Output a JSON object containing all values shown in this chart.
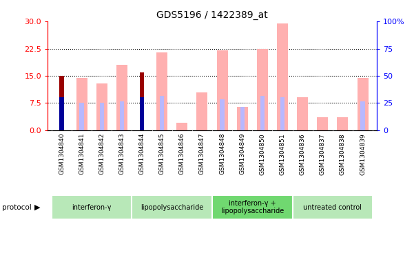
{
  "title": "GDS5196 / 1422389_at",
  "samples": [
    "GSM1304840",
    "GSM1304841",
    "GSM1304842",
    "GSM1304843",
    "GSM1304844",
    "GSM1304845",
    "GSM1304846",
    "GSM1304847",
    "GSM1304848",
    "GSM1304849",
    "GSM1304850",
    "GSM1304851",
    "GSM1304836",
    "GSM1304837",
    "GSM1304838",
    "GSM1304839"
  ],
  "count_values": [
    15.0,
    0,
    0,
    0,
    16.0,
    0,
    0,
    0,
    0,
    0,
    0,
    0,
    0,
    0,
    0,
    0
  ],
  "rank_values": [
    9.0,
    0,
    0,
    0,
    9.0,
    0,
    0,
    0,
    0,
    0,
    0,
    0,
    0,
    0,
    0,
    0
  ],
  "value_absent": [
    0,
    14.5,
    13.0,
    18.0,
    0,
    21.5,
    2.0,
    10.5,
    22.0,
    6.5,
    22.5,
    29.5,
    9.0,
    3.5,
    3.5,
    14.5
  ],
  "rank_absent": [
    0,
    7.5,
    7.5,
    8.0,
    0,
    9.5,
    0,
    0,
    8.5,
    6.5,
    9.5,
    9.0,
    0,
    0,
    0,
    8.0
  ],
  "groups": [
    {
      "label": "interferon-γ",
      "start": 0,
      "end": 4,
      "color": "#b8e8b8"
    },
    {
      "label": "lipopolysaccharide",
      "start": 4,
      "end": 8,
      "color": "#b8e8b8"
    },
    {
      "label": "interferon-γ +\nlipopolysaccharide",
      "start": 8,
      "end": 12,
      "color": "#70d870"
    },
    {
      "label": "untreated control",
      "start": 12,
      "end": 16,
      "color": "#b8e8b8"
    }
  ],
  "ylim_left": [
    0,
    30
  ],
  "ylim_right": [
    0,
    100
  ],
  "yticks_left": [
    0,
    7.5,
    15,
    22.5,
    30
  ],
  "yticks_right": [
    0,
    25,
    50,
    75,
    100
  ],
  "color_count": "#990000",
  "color_rank": "#000099",
  "color_value_absent": "#ffb0b0",
  "color_rank_absent": "#b8b8ff"
}
